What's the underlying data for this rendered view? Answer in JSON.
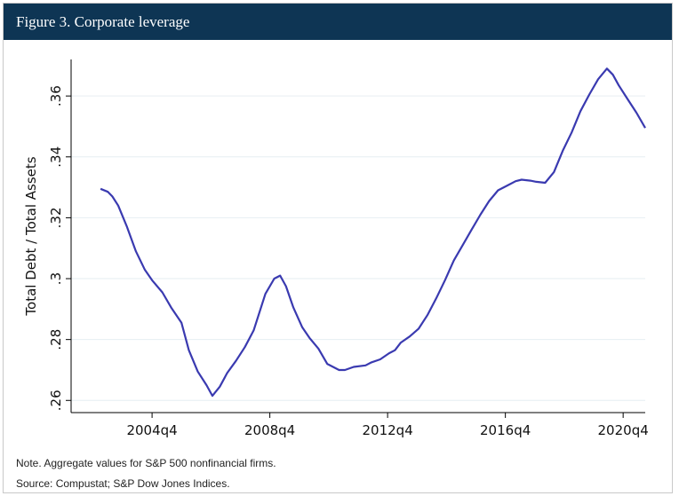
{
  "header": {
    "title": "Figure 3. Corporate leverage"
  },
  "notes": {
    "note": "Note. Aggregate values for S&P 500 nonfinancial firms.",
    "source": "Source: Compustat; S&P Dow Jones Indices."
  },
  "chart_data": {
    "type": "line",
    "ylabel": "Total Debt / Total Assets",
    "xlabel": "",
    "xlim": [
      2002.0,
      2021.5
    ],
    "ylim": [
      0.256,
      0.372
    ],
    "xticks": [
      {
        "x": 2004.75,
        "label": "2004q4"
      },
      {
        "x": 2008.75,
        "label": "2008q4"
      },
      {
        "x": 2012.75,
        "label": "2012q4"
      },
      {
        "x": 2016.75,
        "label": "2016q4"
      },
      {
        "x": 2020.75,
        "label": "2020q4"
      }
    ],
    "yticks": [
      {
        "y": 0.26,
        "label": ".26"
      },
      {
        "y": 0.28,
        "label": ".28"
      },
      {
        "y": 0.3,
        "label": ".3"
      },
      {
        "y": 0.32,
        "label": ".32"
      },
      {
        "y": 0.34,
        "label": ".34"
      },
      {
        "y": 0.36,
        "label": ".36"
      }
    ],
    "grid": "horizontal",
    "line_color": "#3a3ab0",
    "series": [
      {
        "values": [
          [
            2003.0,
            0.3295
          ],
          [
            2003.25,
            0.3285
          ],
          [
            2003.4,
            0.327
          ],
          [
            2003.6,
            0.324
          ],
          [
            2003.9,
            0.317
          ],
          [
            2004.2,
            0.309
          ],
          [
            2004.5,
            0.303
          ],
          [
            2004.75,
            0.2995
          ],
          [
            2005.1,
            0.2955
          ],
          [
            2005.4,
            0.2905
          ],
          [
            2005.75,
            0.2855
          ],
          [
            2006.0,
            0.2765
          ],
          [
            2006.3,
            0.2695
          ],
          [
            2006.6,
            0.265
          ],
          [
            2006.8,
            0.2615
          ],
          [
            2007.05,
            0.2645
          ],
          [
            2007.3,
            0.269
          ],
          [
            2007.6,
            0.273
          ],
          [
            2007.9,
            0.2775
          ],
          [
            2008.2,
            0.283
          ],
          [
            2008.6,
            0.295
          ],
          [
            2008.9,
            0.3
          ],
          [
            2009.1,
            0.301
          ],
          [
            2009.3,
            0.2975
          ],
          [
            2009.55,
            0.2905
          ],
          [
            2009.85,
            0.284
          ],
          [
            2010.1,
            0.2805
          ],
          [
            2010.4,
            0.277
          ],
          [
            2010.7,
            0.272
          ],
          [
            2011.1,
            0.27
          ],
          [
            2011.3,
            0.27
          ],
          [
            2011.6,
            0.271
          ],
          [
            2012.0,
            0.2715
          ],
          [
            2012.2,
            0.2725
          ],
          [
            2012.5,
            0.2735
          ],
          [
            2012.8,
            0.2755
          ],
          [
            2013.0,
            0.2765
          ],
          [
            2013.2,
            0.279
          ],
          [
            2013.5,
            0.281
          ],
          [
            2013.8,
            0.2835
          ],
          [
            2014.1,
            0.288
          ],
          [
            2014.4,
            0.2935
          ],
          [
            2014.7,
            0.2995
          ],
          [
            2015.0,
            0.306
          ],
          [
            2015.3,
            0.311
          ],
          [
            2015.6,
            0.316
          ],
          [
            2015.9,
            0.321
          ],
          [
            2016.2,
            0.3255
          ],
          [
            2016.5,
            0.329
          ],
          [
            2016.8,
            0.3305
          ],
          [
            2017.1,
            0.332
          ],
          [
            2017.3,
            0.3325
          ],
          [
            2017.6,
            0.3322
          ],
          [
            2017.8,
            0.3318
          ],
          [
            2018.1,
            0.3315
          ],
          [
            2018.4,
            0.335
          ],
          [
            2018.7,
            0.342
          ],
          [
            2019.0,
            0.348
          ],
          [
            2019.3,
            0.355
          ],
          [
            2019.6,
            0.3605
          ],
          [
            2019.9,
            0.3655
          ],
          [
            2020.2,
            0.369
          ],
          [
            2020.4,
            0.367
          ],
          [
            2020.6,
            0.3635
          ],
          [
            2020.9,
            0.359
          ],
          [
            2021.2,
            0.3545
          ],
          [
            2021.5,
            0.3495
          ]
        ]
      }
    ]
  }
}
